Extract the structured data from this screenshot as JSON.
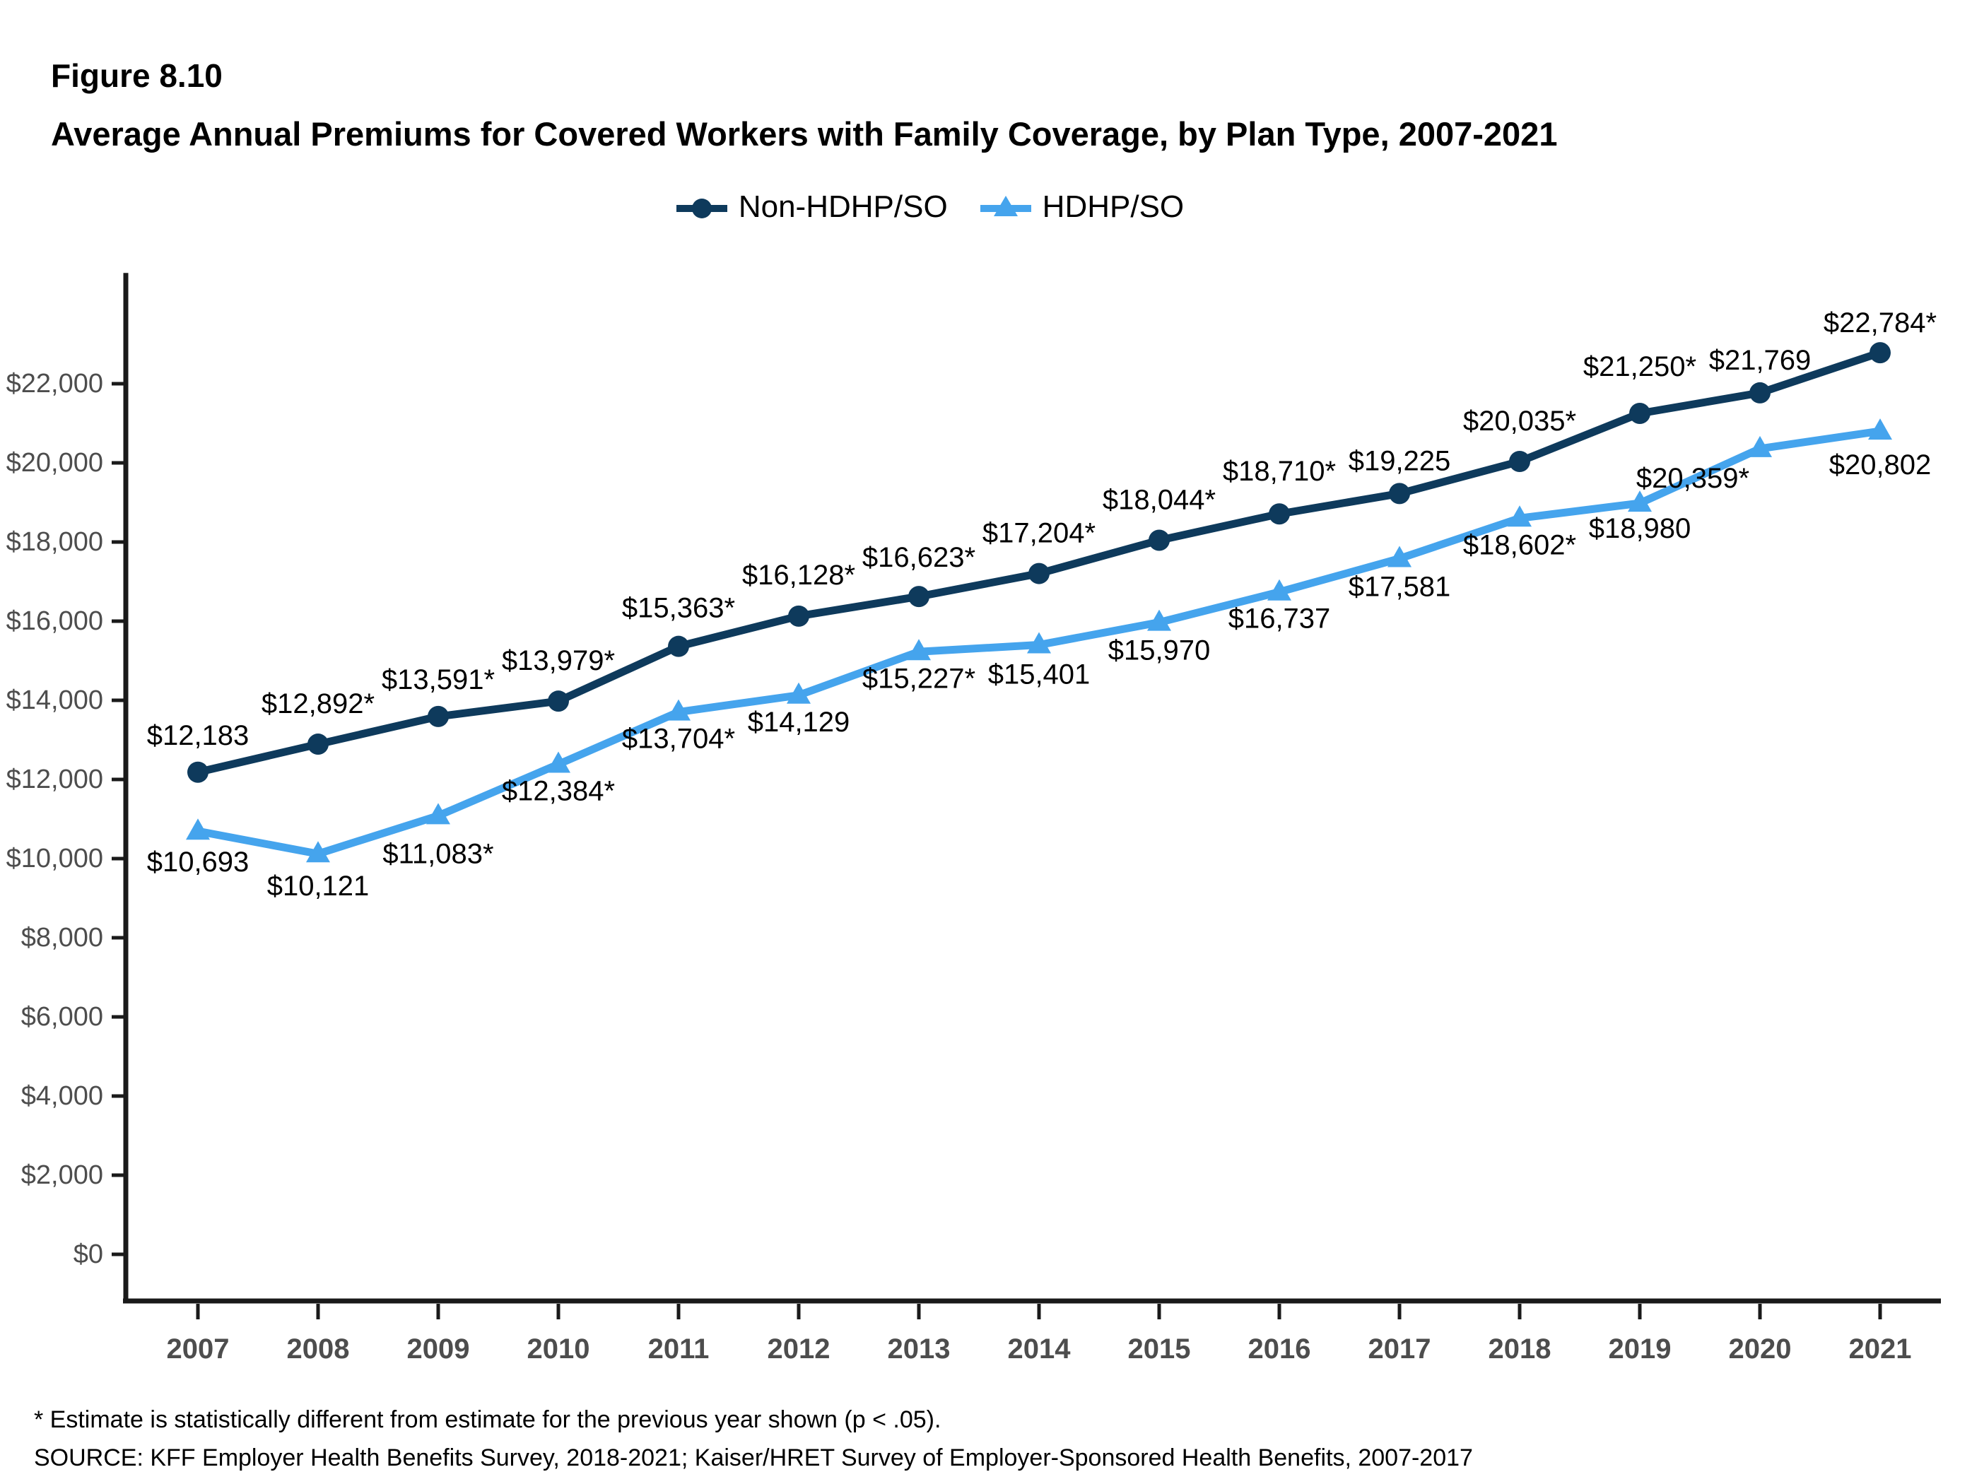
{
  "title": {
    "figure": "Figure 8.10",
    "main": "Average Annual Premiums for Covered Workers with Family Coverage, by Plan Type, 2007-2021"
  },
  "legend": {
    "items": [
      {
        "label": "Non-HDHP/SO",
        "marker": "circle",
        "color": "#0E3A5C"
      },
      {
        "label": "HDHP/SO",
        "marker": "triangle",
        "color": "#45A4ED"
      }
    ]
  },
  "footnotes": {
    "significance": "* Estimate is statistically different from estimate for the previous year shown (p < .05).",
    "source": "SOURCE: KFF Employer Health Benefits Survey, 2018-2021; Kaiser/HRET Survey of Employer-Sponsored Health Benefits, 2007-2017"
  },
  "colors": {
    "non_hdhp": "#0E3A5C",
    "hdhp": "#45A4ED",
    "axis": "#1a1a1a",
    "tick_text": "#4D4D4D",
    "data_label_text": "#000000"
  },
  "chart_data": {
    "type": "line",
    "title": "Average Annual Premiums for Covered Workers with Family Coverage, by Plan Type, 2007-2021",
    "x": [
      2007,
      2008,
      2009,
      2010,
      2011,
      2012,
      2013,
      2014,
      2015,
      2016,
      2017,
      2018,
      2019,
      2020,
      2021
    ],
    "series": [
      {
        "name": "Non-HDHP/SO",
        "marker": "circle",
        "color": "#0E3A5C",
        "values": [
          12183,
          12892,
          13591,
          13979,
          15363,
          16128,
          16623,
          17204,
          18044,
          18710,
          19225,
          20035,
          21250,
          21769,
          22784
        ],
        "point_labels": [
          "$12,183",
          "$12,892*",
          "$13,591*",
          "$13,979*",
          "$15,363*",
          "$16,128*",
          "$16,623*",
          "$17,204*",
          "$18,044*",
          "$18,710*",
          "$19,225",
          "$20,035*",
          "$21,250*",
          "$21,769",
          "$22,784*"
        ],
        "label_offsets": {
          "dx": [
            0,
            0,
            0,
            0,
            0,
            0,
            0,
            0,
            0,
            0,
            0,
            0,
            0,
            0,
            0
          ],
          "dy": [
            -52,
            -57,
            -52,
            -57,
            -54,
            -58,
            -55,
            -57,
            -57,
            -60,
            -46,
            -57,
            -66,
            -46,
            -42
          ]
        }
      },
      {
        "name": "HDHP/SO",
        "marker": "triangle",
        "color": "#45A4ED",
        "values": [
          10693,
          10121,
          11083,
          12384,
          13704,
          14129,
          15227,
          15401,
          15970,
          16737,
          17581,
          18602,
          18980,
          20359,
          20802
        ],
        "point_labels": [
          "$10,693",
          "$10,121",
          "$11,083*",
          "$12,384*",
          "$13,704*",
          "$14,129",
          "$15,227*",
          "$15,401",
          "$15,970",
          "$16,737",
          "$17,581",
          "$18,602*",
          "$18,980",
          "$20,359*",
          "$20,802"
        ],
        "label_offsets": {
          "dx": [
            0,
            0,
            0,
            0,
            0,
            0,
            0,
            0,
            0,
            0,
            0,
            0,
            0,
            -95,
            0
          ],
          "dy": [
            44,
            46,
            54,
            38,
            38,
            38,
            38,
            42,
            40,
            38,
            40,
            38,
            36,
            42,
            48
          ]
        }
      }
    ],
    "xlabel": "",
    "ylabel": "",
    "ytick_values": [
      0,
      2000,
      4000,
      6000,
      8000,
      10000,
      12000,
      14000,
      16000,
      18000,
      20000,
      22000
    ],
    "ytick_labels": [
      "$0",
      "$2,000",
      "$4,000",
      "$6,000",
      "$8,000",
      "$10,000",
      "$12,000",
      "$14,000",
      "$16,000",
      "$18,000",
      "$20,000",
      "$22,000"
    ],
    "ylim": [
      0,
      24800
    ],
    "grid": false,
    "legend_position": "top"
  }
}
